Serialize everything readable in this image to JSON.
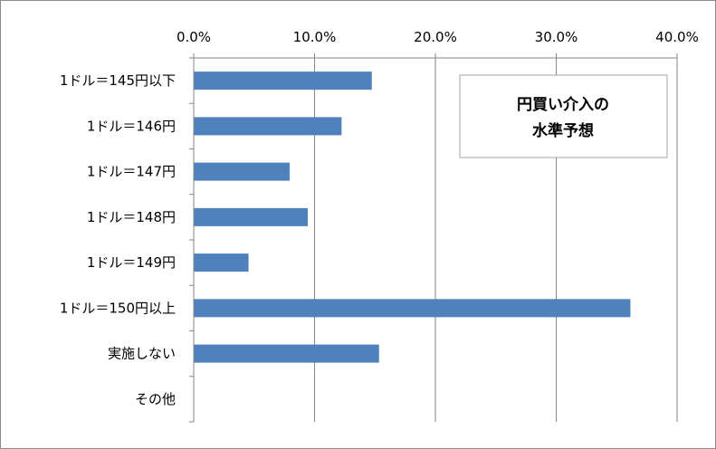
{
  "chart_data": {
    "type": "bar",
    "orientation": "horizontal",
    "title_lines": [
      "円買い介入の",
      "水準予想"
    ],
    "categories": [
      "1ドル＝145円以下",
      "1ドル＝146円",
      "1ドル＝147円",
      "1ドル＝148円",
      "1ドル＝149円",
      "1ドル＝150円以上",
      "実施しない",
      "その他"
    ],
    "values": [
      14.7,
      12.2,
      7.9,
      9.4,
      4.5,
      36.1,
      15.3,
      0.0
    ],
    "xlim": [
      0,
      40
    ],
    "x_ticks": [
      "0.0%",
      "10.0%",
      "20.0%",
      "30.0%",
      "40.0%"
    ],
    "x_tick_values": [
      0,
      10,
      20,
      30,
      40
    ],
    "x_axis_position": "top",
    "grid": true,
    "bar_color": "#4f81bd",
    "grid_color": "#868686"
  }
}
